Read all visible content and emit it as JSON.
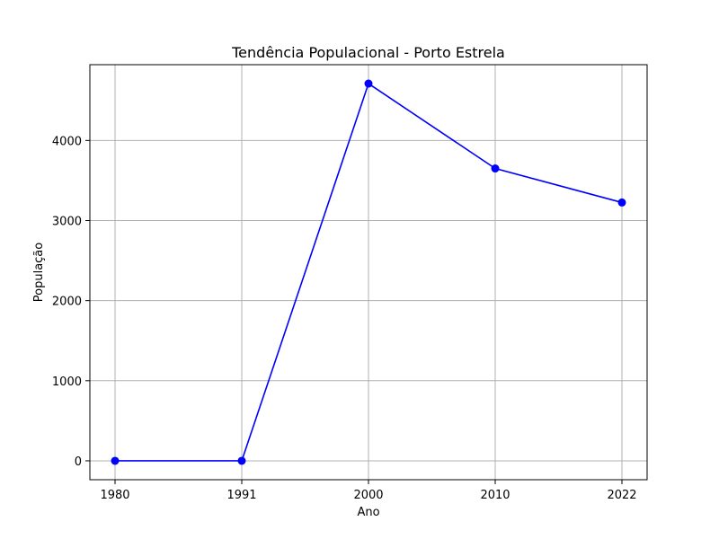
{
  "chart_data": {
    "type": "line",
    "title": "Tendência Populacional - Porto Estrela",
    "xlabel": "Ano",
    "ylabel": "População",
    "categories": [
      "1980",
      "1991",
      "2000",
      "2010",
      "2022"
    ],
    "series": [
      {
        "values": [
          0,
          0,
          4710,
          3650,
          3225
        ],
        "color": "#0000ff",
        "marker": "circle"
      }
    ],
    "yticks": [
      0,
      1000,
      2000,
      3000,
      4000
    ],
    "ylim": [
      -236,
      4946
    ],
    "grid": true,
    "legend": "none"
  }
}
